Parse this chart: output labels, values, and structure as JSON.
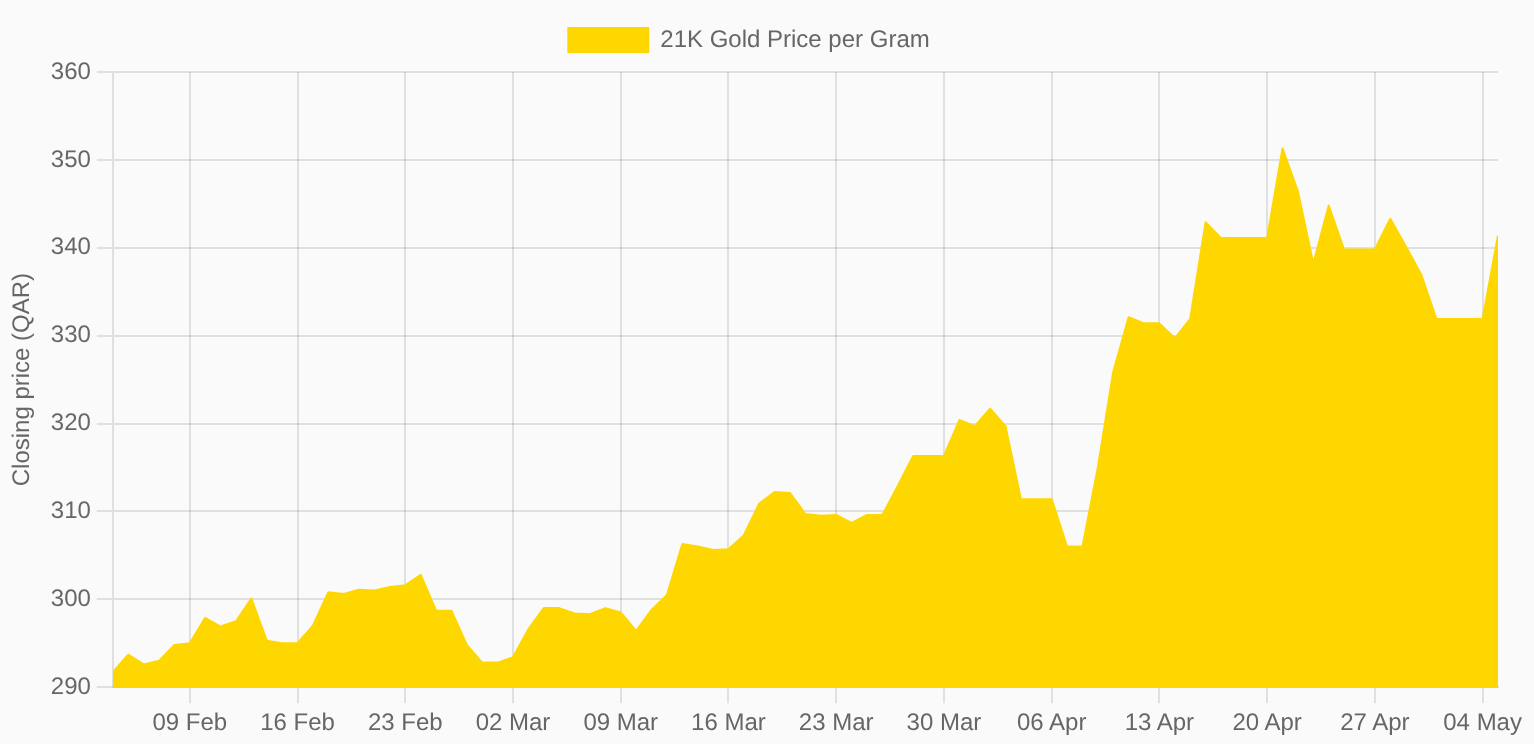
{
  "chart_data": {
    "type": "area",
    "ylabel": "Closing price (QAR)",
    "legend": "top",
    "grid": true,
    "marker": "none",
    "x": [
      "--02-04",
      "--02-05",
      "--02-06",
      "--02-07",
      "--02-08",
      "--02-09",
      "--02-10",
      "--02-11",
      "--02-12",
      "--02-13",
      "--02-14",
      "--02-15",
      "--02-16",
      "--02-17",
      "--02-18",
      "--02-19",
      "--02-20",
      "--02-21",
      "--02-22",
      "--02-23",
      "--02-24",
      "--02-25",
      "--02-26",
      "--02-27",
      "--02-28",
      "--03-01",
      "--03-02",
      "--03-03",
      "--03-04",
      "--03-05",
      "--03-06",
      "--03-07",
      "--03-08",
      "--03-09",
      "--03-10",
      "--03-11",
      "--03-12",
      "--03-13",
      "--03-14",
      "--03-15",
      "--03-16",
      "--03-17",
      "--03-18",
      "--03-19",
      "--03-20",
      "--03-21",
      "--03-22",
      "--03-23",
      "--03-24",
      "--03-25",
      "--03-26",
      "--03-27",
      "--03-28",
      "--03-29",
      "--03-30",
      "--03-31",
      "--04-01",
      "--04-02",
      "--04-03",
      "--04-04",
      "--04-05",
      "--04-06",
      "--04-07",
      "--04-08",
      "--04-09",
      "--04-10",
      "--04-11",
      "--04-12",
      "--04-13",
      "--04-14",
      "--04-15",
      "--04-16",
      "--04-17",
      "--04-18",
      "--04-19",
      "--04-20",
      "--04-21",
      "--04-22",
      "--04-23",
      "--04-24",
      "--04-25",
      "--04-26",
      "--04-27",
      "--04-28",
      "--04-29",
      "--04-30",
      "--05-01",
      "--05-02",
      "--05-03",
      "--05-04",
      "--05-05"
    ],
    "series": [
      {
        "name": "21K Gold Price per Gram",
        "color": "#ffd700",
        "values": [
          291.7,
          293.7,
          292.6,
          293.0,
          294.8,
          295.0,
          297.9,
          296.9,
          297.5,
          300.1,
          295.3,
          295.0,
          295.0,
          297.0,
          300.8,
          300.6,
          301.1,
          301.0,
          301.4,
          301.6,
          302.8,
          298.7,
          298.7,
          294.8,
          292.8,
          292.8,
          293.4,
          296.6,
          299.0,
          299.0,
          298.4,
          298.3,
          299.0,
          298.5,
          296.4,
          298.8,
          300.5,
          306.3,
          306.0,
          305.6,
          305.7,
          307.3,
          310.9,
          312.2,
          312.1,
          309.7,
          309.5,
          309.6,
          308.7,
          309.6,
          309.6,
          312.9,
          316.3,
          316.3,
          316.3,
          320.4,
          319.7,
          321.7,
          319.7,
          311.4,
          311.4,
          311.4,
          306.0,
          306.0,
          315.0,
          325.9,
          332.1,
          331.4,
          331.4,
          329.7,
          331.9,
          342.9,
          341.1,
          341.1,
          341.1,
          341.1,
          351.3,
          346.4,
          338.2,
          344.8,
          339.8,
          339.8,
          339.8,
          343.3,
          340.2,
          337.0,
          331.9,
          331.9,
          331.9,
          331.9,
          341.4
        ]
      }
    ],
    "xlim": [
      "--02-04",
      "--05-05"
    ],
    "xticks": [
      {
        "value": "--02-09",
        "label": "09 Feb"
      },
      {
        "value": "--02-16",
        "label": "16 Feb"
      },
      {
        "value": "--02-23",
        "label": "23 Feb"
      },
      {
        "value": "--03-02",
        "label": "02 Mar"
      },
      {
        "value": "--03-09",
        "label": "09 Mar"
      },
      {
        "value": "--03-16",
        "label": "16 Mar"
      },
      {
        "value": "--03-23",
        "label": "23 Mar"
      },
      {
        "value": "--03-30",
        "label": "30 Mar"
      },
      {
        "value": "--04-06",
        "label": "06 Apr"
      },
      {
        "value": "--04-13",
        "label": "13 Apr"
      },
      {
        "value": "--04-20",
        "label": "20 Apr"
      },
      {
        "value": "--04-27",
        "label": "27 Apr"
      },
      {
        "value": "--05-04",
        "label": "04 May"
      }
    ],
    "ylim": [
      290,
      360
    ],
    "yticks": [
      290,
      300,
      310,
      320,
      330,
      340,
      350,
      360
    ]
  }
}
